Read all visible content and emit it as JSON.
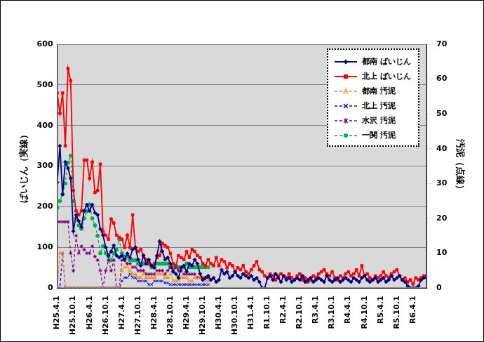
{
  "chart_data": {
    "type": "line",
    "y_label": "ばいじん（実線）",
    "y2_label": "汚泥（点線）",
    "ylim": [
      0,
      600
    ],
    "yticks": [
      0,
      100,
      200,
      300,
      400,
      500,
      600
    ],
    "y2lim": [
      0,
      70
    ],
    "y2ticks": [
      0,
      10,
      20,
      30,
      40,
      50,
      60,
      70
    ],
    "grid": true,
    "legend": "top-right",
    "categories": [
      "H25.4.1",
      null,
      null,
      null,
      null,
      null,
      "H25.10.1",
      null,
      null,
      null,
      null,
      null,
      "H26.4.1",
      null,
      null,
      null,
      null,
      null,
      "H26.10.1",
      null,
      null,
      null,
      null,
      null,
      "H27.4.1",
      null,
      null,
      null,
      null,
      null,
      "H27.10.1",
      null,
      null,
      null,
      null,
      null,
      "H28.4.1",
      null,
      null,
      null,
      null,
      null,
      "H28.10.1",
      null,
      null,
      null,
      null,
      null,
      "H29.4.1",
      null,
      null,
      null,
      null,
      null,
      "H29.10.1",
      null,
      null,
      null,
      null,
      null,
      "H30.4.1",
      null,
      null,
      null,
      null,
      null,
      "H30.10.1",
      null,
      null,
      null,
      null,
      null,
      "H31.4.1",
      null,
      null,
      null,
      null,
      null,
      "R1.10.1",
      null,
      null,
      null,
      null,
      null,
      "R2.4.1",
      null,
      null,
      null,
      null,
      null,
      "R2.10.1",
      null,
      null,
      null,
      null,
      null,
      "R3.4.1",
      null,
      null,
      null,
      null,
      null,
      "R3.10.1",
      null,
      null,
      null,
      null,
      null,
      "R4.4.1",
      null,
      null,
      null,
      null,
      null,
      "R4.10.1",
      null,
      null,
      null,
      null,
      null,
      "R5.4.1",
      null,
      null,
      null,
      null,
      null,
      "R5.10.1",
      null,
      null,
      null,
      null,
      null,
      "R6.4.1",
      null,
      null,
      null,
      null,
      null
    ],
    "series": [
      {
        "name": "都南 ばいじん",
        "color": "#000080",
        "marker": "diamond",
        "line_style": "solid",
        "axis": "y",
        "values": [
          260,
          350,
          230,
          310,
          295,
          270,
          140,
          180,
          165,
          150,
          190,
          205,
          190,
          205,
          185,
          180,
          145,
          130,
          100,
          80,
          90,
          105,
          80,
          75,
          80,
          70,
          85,
          75,
          95,
          100,
          70,
          55,
          80,
          60,
          70,
          55,
          50,
          80,
          115,
          90,
          70,
          75,
          60,
          40,
          35,
          25,
          50,
          55,
          40,
          60,
          55,
          70,
          60,
          35,
          20,
          25,
          30,
          20,
          25,
          15,
          20,
          45,
          35,
          40,
          25,
          30,
          40,
          30,
          25,
          35,
          30,
          25,
          30,
          20,
          25,
          15,
          0,
          0,
          25,
          30,
          20,
          35,
          25,
          15,
          30,
          20,
          25,
          15,
          20,
          25,
          20,
          30,
          15,
          20,
          25,
          15,
          20,
          25,
          20,
          15,
          30,
          20,
          15,
          20,
          25,
          15,
          20,
          25,
          20,
          15,
          25,
          20,
          15,
          25,
          30,
          20,
          15,
          20,
          25,
          15,
          20,
          25,
          15,
          20,
          30,
          20,
          25,
          30,
          20,
          15,
          5,
          0,
          0,
          0,
          5,
          20,
          25,
          25
        ]
      },
      {
        "name": "北上 ばいじん",
        "color": "#ff0000",
        "marker": "square",
        "line_style": "solid",
        "axis": "y",
        "values": [
          480,
          430,
          480,
          350,
          540,
          510,
          240,
          190,
          180,
          190,
          315,
          315,
          270,
          310,
          235,
          240,
          305,
          140,
          130,
          120,
          170,
          160,
          130,
          125,
          120,
          100,
          130,
          100,
          180,
          100,
          90,
          95,
          80,
          70,
          60,
          55,
          60,
          75,
          80,
          110,
          105,
          100,
          85,
          60,
          55,
          80,
          75,
          70,
          90,
          75,
          95,
          90,
          80,
          75,
          60,
          55,
          70,
          60,
          55,
          75,
          55,
          70,
          65,
          50,
          60,
          55,
          40,
          50,
          45,
          55,
          40,
          35,
          45,
          55,
          65,
          45,
          40,
          30,
          25,
          35,
          30,
          20,
          30,
          35,
          30,
          25,
          35,
          25,
          20,
          30,
          35,
          20,
          25,
          15,
          20,
          30,
          25,
          35,
          40,
          45,
          35,
          30,
          40,
          25,
          20,
          30,
          25,
          35,
          40,
          30,
          35,
          45,
          30,
          55,
          30,
          35,
          25,
          20,
          30,
          25,
          30,
          40,
          30,
          25,
          35,
          40,
          45,
          30,
          20,
          25,
          15,
          20,
          10,
          25,
          20,
          25,
          30,
          30
        ]
      },
      {
        "name": "都南 汚泥",
        "color": "#ff8c00",
        "marker": "triangle",
        "line_style": "dashed",
        "axis": "y2",
        "values": [
          0,
          10,
          10,
          0,
          0,
          0,
          0,
          0,
          0,
          0,
          0,
          0,
          0,
          0,
          0,
          0,
          0,
          0,
          0,
          0,
          0,
          0,
          0,
          0,
          5,
          6,
          6,
          5,
          4,
          4,
          3,
          3,
          4,
          3,
          3,
          3,
          3,
          4,
          4,
          4,
          3,
          3,
          4,
          2,
          2,
          2,
          3,
          3,
          3,
          2,
          2,
          3,
          3,
          3,
          3,
          2,
          2,
          null,
          null,
          null,
          null,
          null,
          null,
          null,
          null,
          null,
          null,
          null,
          null,
          null,
          null,
          null,
          null,
          null,
          null,
          null,
          null,
          null,
          null,
          null,
          null,
          null,
          null,
          null,
          null,
          null,
          null,
          null,
          null,
          null,
          null,
          null,
          null,
          null,
          null,
          null,
          null,
          null,
          null,
          null,
          null,
          null,
          null,
          null,
          null,
          null,
          null,
          null,
          null,
          null,
          null,
          null,
          null,
          null,
          null,
          null,
          null,
          null,
          null,
          null,
          null,
          null,
          null,
          null,
          null,
          null,
          null,
          null,
          null,
          null,
          null,
          null,
          null,
          null,
          null,
          null,
          null,
          null
        ]
      },
      {
        "name": "北上 汚泥",
        "color": "#0000ff",
        "marker": "x",
        "line_style": "dashed",
        "axis": "y2",
        "values": [
          0,
          0,
          10,
          0,
          0,
          0,
          0,
          0,
          0,
          0,
          0,
          0,
          0,
          0,
          0,
          0,
          0,
          0,
          0,
          0,
          0,
          0,
          0,
          0,
          2,
          3,
          3,
          4,
          3,
          3,
          2,
          2,
          2,
          2,
          1,
          1,
          2,
          2,
          2,
          2,
          1.5,
          1.5,
          1,
          1,
          1,
          1,
          1,
          1,
          1,
          1,
          1,
          1,
          1,
          1,
          1,
          1,
          1,
          null,
          null,
          null,
          null,
          null,
          null,
          null,
          null,
          null,
          null,
          null,
          null,
          null,
          null,
          null,
          null,
          null,
          null,
          null,
          null,
          null,
          null,
          null,
          null,
          null,
          null,
          null,
          null,
          null,
          null,
          null,
          null,
          null,
          null,
          null,
          null,
          null,
          null,
          null,
          null,
          null,
          null,
          null,
          null,
          null,
          null,
          null,
          null,
          null,
          null,
          null,
          null,
          null,
          null,
          null,
          null,
          null,
          null,
          null,
          null,
          null,
          null,
          null,
          null,
          null,
          null,
          null,
          null,
          null,
          null,
          null,
          null,
          null,
          null,
          null,
          null,
          null,
          null,
          null,
          null,
          null
        ]
      },
      {
        "name": "水沢 汚泥",
        "color": "#800080",
        "marker": "star",
        "line_style": "dashed",
        "axis": "y2",
        "values": [
          19,
          19,
          19,
          19,
          19,
          10,
          5,
          15,
          10,
          12,
          11,
          10,
          10,
          12,
          9,
          8,
          5,
          0,
          5,
          8,
          5,
          8,
          0,
          0,
          8,
          8,
          7,
          7,
          6,
          6,
          5,
          5,
          5,
          4,
          4,
          4,
          4,
          5,
          5,
          5,
          4,
          5,
          6,
          5,
          6,
          5,
          5,
          4,
          4,
          4,
          4,
          4,
          3,
          3,
          3,
          3,
          3,
          null,
          null,
          null,
          null,
          null,
          null,
          null,
          null,
          null,
          null,
          null,
          null,
          null,
          null,
          null,
          null,
          null,
          null,
          null,
          null,
          null,
          null,
          null,
          null,
          null,
          null,
          null,
          null,
          null,
          null,
          null,
          null,
          null,
          null,
          null,
          null,
          null,
          null,
          null,
          null,
          null,
          null,
          null,
          null,
          null,
          null,
          null,
          null,
          null,
          null,
          null,
          null,
          null,
          null,
          null,
          null,
          null,
          null,
          null,
          null,
          null,
          null,
          null,
          null,
          null,
          null,
          null,
          null,
          null,
          null,
          null,
          null,
          null,
          null,
          null,
          null,
          null,
          null,
          null,
          null,
          null
        ]
      },
      {
        "name": "一関 汚泥",
        "color": "#00b050",
        "marker": "circle",
        "line_style": "dashed",
        "axis": "y2",
        "values": [
          23,
          25,
          27,
          30,
          36,
          38,
          25,
          20,
          18,
          17,
          20,
          22,
          24,
          20,
          18,
          15,
          10,
          12,
          10,
          9,
          8,
          10,
          11,
          14,
          10,
          9,
          9,
          8,
          8,
          8,
          7,
          7,
          7,
          7,
          7,
          6,
          6,
          7,
          7,
          7,
          7,
          7,
          6,
          6,
          6,
          6,
          6,
          6,
          7,
          6,
          6,
          6,
          6,
          6,
          6,
          6,
          6,
          null,
          null,
          null,
          null,
          null,
          null,
          null,
          null,
          null,
          null,
          null,
          null,
          null,
          null,
          null,
          null,
          null,
          null,
          null,
          null,
          null,
          null,
          null,
          null,
          null,
          null,
          null,
          null,
          null,
          null,
          null,
          null,
          null,
          null,
          null,
          null,
          null,
          null,
          null,
          null,
          null,
          null,
          null,
          null,
          null,
          null,
          null,
          null,
          null,
          null,
          null,
          null,
          null,
          null,
          null,
          null,
          null,
          null,
          null,
          null,
          null,
          null,
          null,
          null,
          null,
          null,
          null,
          null,
          null,
          null,
          null,
          null,
          null,
          null,
          null,
          null,
          null,
          null,
          null,
          null,
          null
        ]
      }
    ]
  }
}
